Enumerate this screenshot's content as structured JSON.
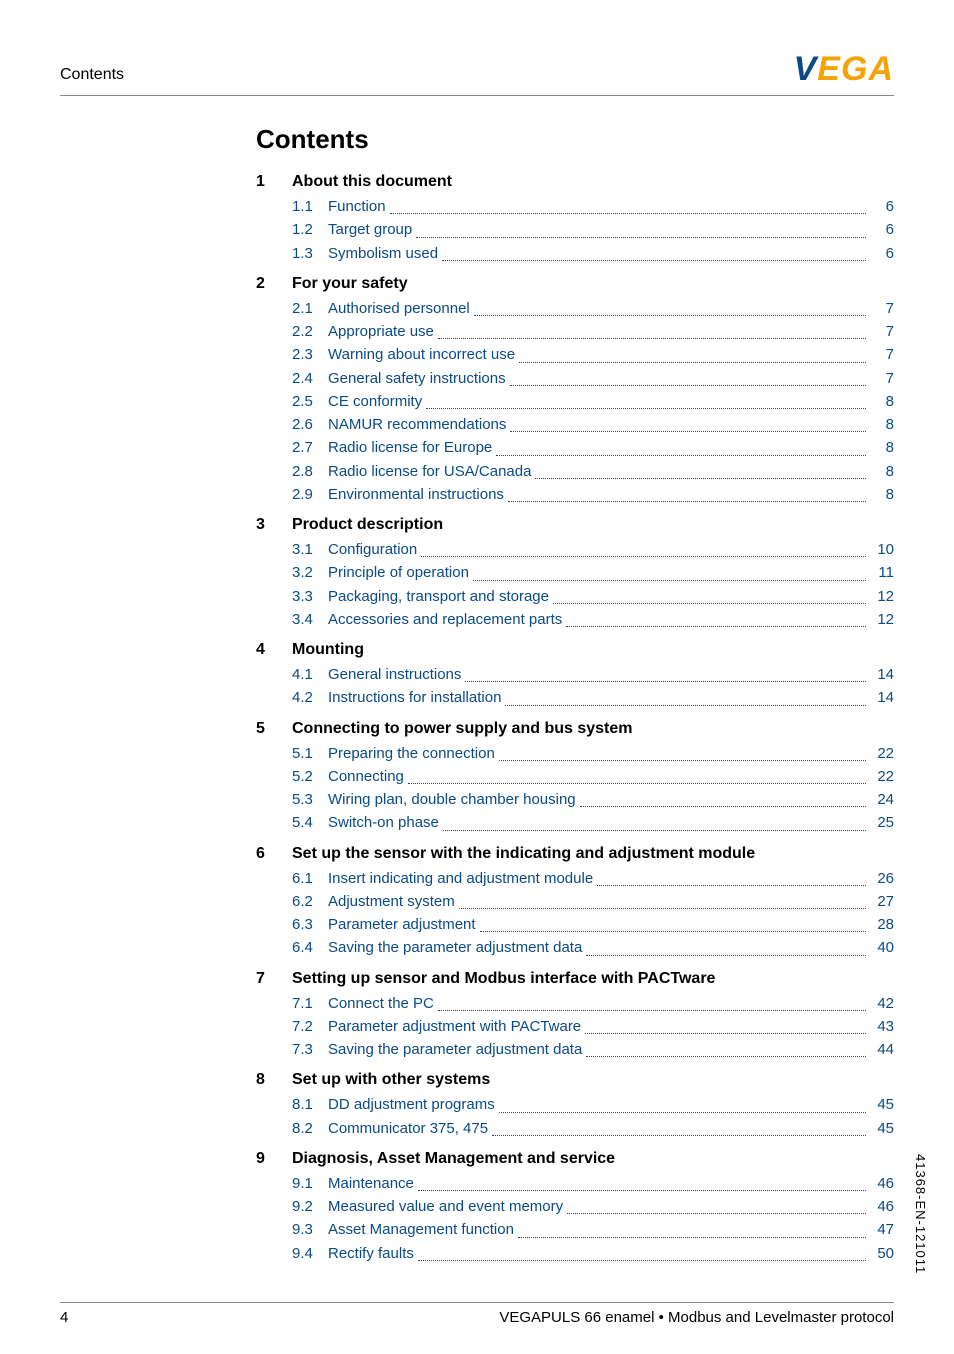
{
  "header": {
    "left": "Contents",
    "logo": {
      "v": "V",
      "e": "E",
      "g": "G",
      "a": "A"
    }
  },
  "title": "Contents",
  "sections": [
    {
      "num": "1",
      "title": "About this document",
      "items": [
        {
          "num": "1.1",
          "title": "Function",
          "page": "6"
        },
        {
          "num": "1.2",
          "title": "Target group",
          "page": "6"
        },
        {
          "num": "1.3",
          "title": "Symbolism used",
          "page": "6"
        }
      ]
    },
    {
      "num": "2",
      "title": "For your safety",
      "items": [
        {
          "num": "2.1",
          "title": "Authorised personnel",
          "page": "7"
        },
        {
          "num": "2.2",
          "title": "Appropriate use",
          "page": "7"
        },
        {
          "num": "2.3",
          "title": "Warning about incorrect use",
          "page": "7"
        },
        {
          "num": "2.4",
          "title": "General safety instructions",
          "page": "7"
        },
        {
          "num": "2.5",
          "title": "CE conformity",
          "page": "8"
        },
        {
          "num": "2.6",
          "title": "NAMUR recommendations",
          "page": "8"
        },
        {
          "num": "2.7",
          "title": "Radio license for Europe",
          "page": "8"
        },
        {
          "num": "2.8",
          "title": "Radio license for USA/Canada",
          "page": "8"
        },
        {
          "num": "2.9",
          "title": "Environmental instructions",
          "page": "8"
        }
      ]
    },
    {
      "num": "3",
      "title": "Product description",
      "items": [
        {
          "num": "3.1",
          "title": "Configuration",
          "page": "10"
        },
        {
          "num": "3.2",
          "title": "Principle of operation",
          "page": "11"
        },
        {
          "num": "3.3",
          "title": "Packaging, transport and storage",
          "page": "12"
        },
        {
          "num": "3.4",
          "title": "Accessories and replacement parts",
          "page": "12"
        }
      ]
    },
    {
      "num": "4",
      "title": "Mounting",
      "items": [
        {
          "num": "4.1",
          "title": "General instructions",
          "page": "14"
        },
        {
          "num": "4.2",
          "title": "Instructions for installation",
          "page": "14"
        }
      ]
    },
    {
      "num": "5",
      "title": "Connecting to power supply and bus system",
      "items": [
        {
          "num": "5.1",
          "title": "Preparing the connection",
          "page": "22"
        },
        {
          "num": "5.2",
          "title": "Connecting",
          "page": "22"
        },
        {
          "num": "5.3",
          "title": "Wiring plan, double chamber housing",
          "page": "24"
        },
        {
          "num": "5.4",
          "title": "Switch-on phase",
          "page": "25"
        }
      ]
    },
    {
      "num": "6",
      "title": "Set up the sensor with the indicating and adjustment module",
      "items": [
        {
          "num": "6.1",
          "title": "Insert indicating and adjustment module",
          "page": "26"
        },
        {
          "num": "6.2",
          "title": "Adjustment system",
          "page": "27"
        },
        {
          "num": "6.3",
          "title": "Parameter adjustment",
          "page": "28"
        },
        {
          "num": "6.4",
          "title": "Saving the parameter adjustment data",
          "page": "40"
        }
      ]
    },
    {
      "num": "7",
      "title": "Setting up sensor and Modbus interface with PACTware",
      "items": [
        {
          "num": "7.1",
          "title": "Connect the PC",
          "page": "42"
        },
        {
          "num": "7.2",
          "title": "Parameter adjustment with PACTware",
          "page": "43"
        },
        {
          "num": "7.3",
          "title": "Saving the parameter adjustment data",
          "page": "44"
        }
      ]
    },
    {
      "num": "8",
      "title": "Set up with other systems",
      "items": [
        {
          "num": "8.1",
          "title": "DD adjustment programs",
          "page": "45"
        },
        {
          "num": "8.2",
          "title": "Communicator 375, 475",
          "page": "45"
        }
      ]
    },
    {
      "num": "9",
      "title": "Diagnosis, Asset Management and service",
      "items": [
        {
          "num": "9.1",
          "title": "Maintenance",
          "page": "46"
        },
        {
          "num": "9.2",
          "title": "Measured value and event memory",
          "page": "46"
        },
        {
          "num": "9.3",
          "title": "Asset Management function",
          "page": "47"
        },
        {
          "num": "9.4",
          "title": "Rectify faults",
          "page": "50"
        }
      ]
    }
  ],
  "footer": {
    "page": "4",
    "text": "VEGAPULS 66 enamel • Modbus and Levelmaster protocol"
  },
  "side_code": "41368-EN-121011",
  "colors": {
    "link": "#0a4a86",
    "logo_v": "#0a4a86",
    "logo_rest": "#f5a300",
    "rule": "#888888",
    "background": "#ffffff",
    "text": "#000000"
  },
  "typography": {
    "title_fontsize": 26,
    "section_fontsize": 16,
    "entry_fontsize": 15,
    "font_family": "Arial, Helvetica, sans-serif"
  }
}
